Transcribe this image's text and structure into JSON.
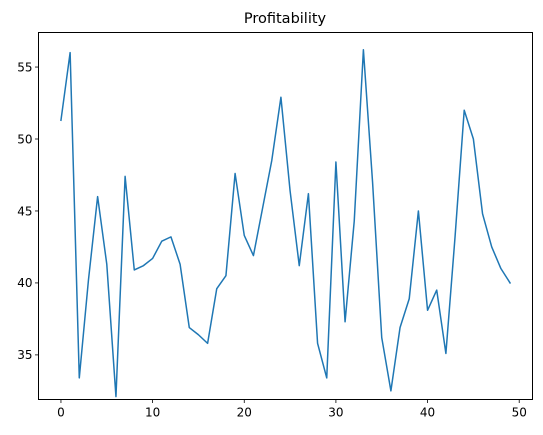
{
  "chart_data": {
    "type": "line",
    "title": "Profitability",
    "xlabel": "",
    "ylabel": "",
    "xlim": [
      -2.45,
      51.45
    ],
    "ylim": [
      31.9,
      57.4
    ],
    "xticks": [
      0,
      10,
      20,
      30,
      40,
      50
    ],
    "yticks": [
      35,
      40,
      45,
      50,
      55
    ],
    "grid": false,
    "line_color": "#1f77b4",
    "series": [
      {
        "x": [
          0,
          1,
          2,
          3,
          4,
          5,
          6,
          7,
          8,
          9,
          10,
          11,
          12,
          13,
          14,
          15,
          16,
          17,
          18,
          19,
          20,
          21,
          22,
          23,
          24,
          25,
          26,
          27,
          28,
          29,
          30,
          31,
          32,
          33,
          34,
          35,
          36,
          37,
          38,
          39,
          40,
          41,
          42,
          43,
          44,
          45,
          46,
          47,
          48,
          49
        ],
        "values": [
          51.3,
          56.0,
          33.4,
          40.2,
          46.0,
          41.3,
          32.1,
          47.4,
          40.9,
          41.2,
          41.7,
          42.9,
          43.2,
          41.3,
          36.9,
          36.4,
          35.8,
          39.6,
          40.5,
          47.6,
          43.3,
          41.9,
          45.2,
          48.5,
          52.9,
          46.4,
          41.2,
          46.2,
          35.8,
          33.4,
          48.4,
          37.3,
          44.3,
          56.2,
          47.0,
          36.2,
          32.5,
          36.9,
          38.9,
          45.0,
          38.1,
          39.5,
          35.1,
          43.2,
          52.0,
          50.0,
          44.8,
          42.5,
          41.0,
          40.0
        ]
      }
    ]
  }
}
